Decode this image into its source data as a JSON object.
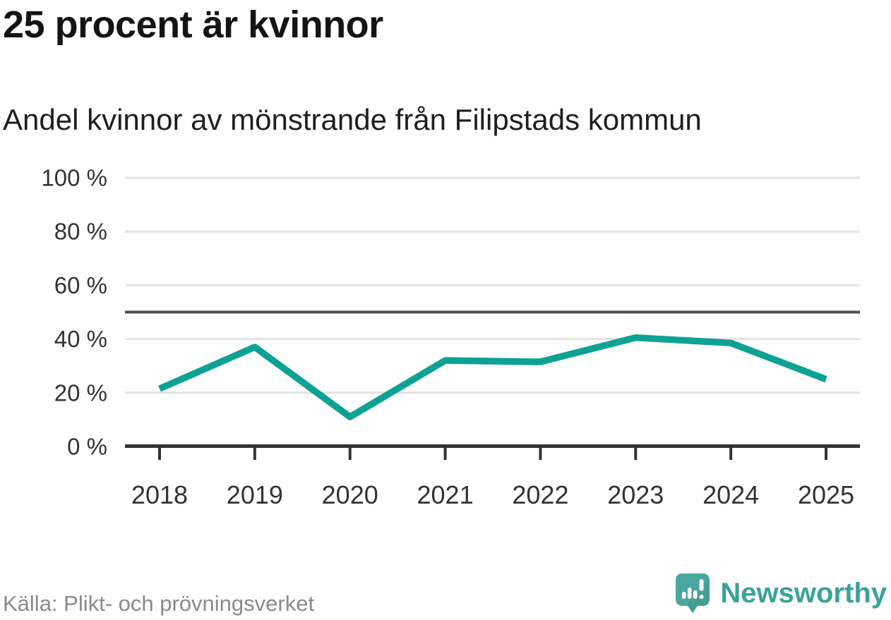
{
  "header": {
    "title": "25 procent är kvinnor",
    "subtitle": "Andel kvinnor av mönstrande från Filipstads kommun"
  },
  "footer": {
    "source": "Källa: Plikt- och prövningsverket",
    "brand": "Newsworthy"
  },
  "icons": {
    "logo": "newsworthy-speech-bubble-bar-chart"
  },
  "colors": {
    "line": "#0da294",
    "grid": "#e2e2e2",
    "reference_line": "#4d4d4d",
    "axis": "#333333",
    "tick_text": "#333333",
    "title_text": "#141414",
    "source_text": "#8a8a8a",
    "brand_text": "#3aa29a",
    "logo_bg": "#4aa79f",
    "logo_shade": "#42978e"
  },
  "chart_data": {
    "type": "line",
    "title": "25 procent är kvinnor",
    "subtitle": "Andel kvinnor av mönstrande från Filipstads kommun",
    "categories": [
      "2018",
      "2019",
      "2020",
      "2021",
      "2022",
      "2023",
      "2024",
      "2025"
    ],
    "series": [
      {
        "name": "Andel kvinnor av mönstrande",
        "values": [
          21.5,
          37,
          11,
          32,
          31.5,
          40.5,
          38.5,
          25
        ]
      }
    ],
    "xlabel": "",
    "ylabel": "",
    "ylim": [
      0,
      100
    ],
    "yticks": [
      0,
      20,
      40,
      60,
      80,
      100
    ],
    "ytick_suffix": " %",
    "reference_line": 50,
    "grid": true,
    "legend": false,
    "source": "Källa: Plikt- och prövningsverket"
  }
}
